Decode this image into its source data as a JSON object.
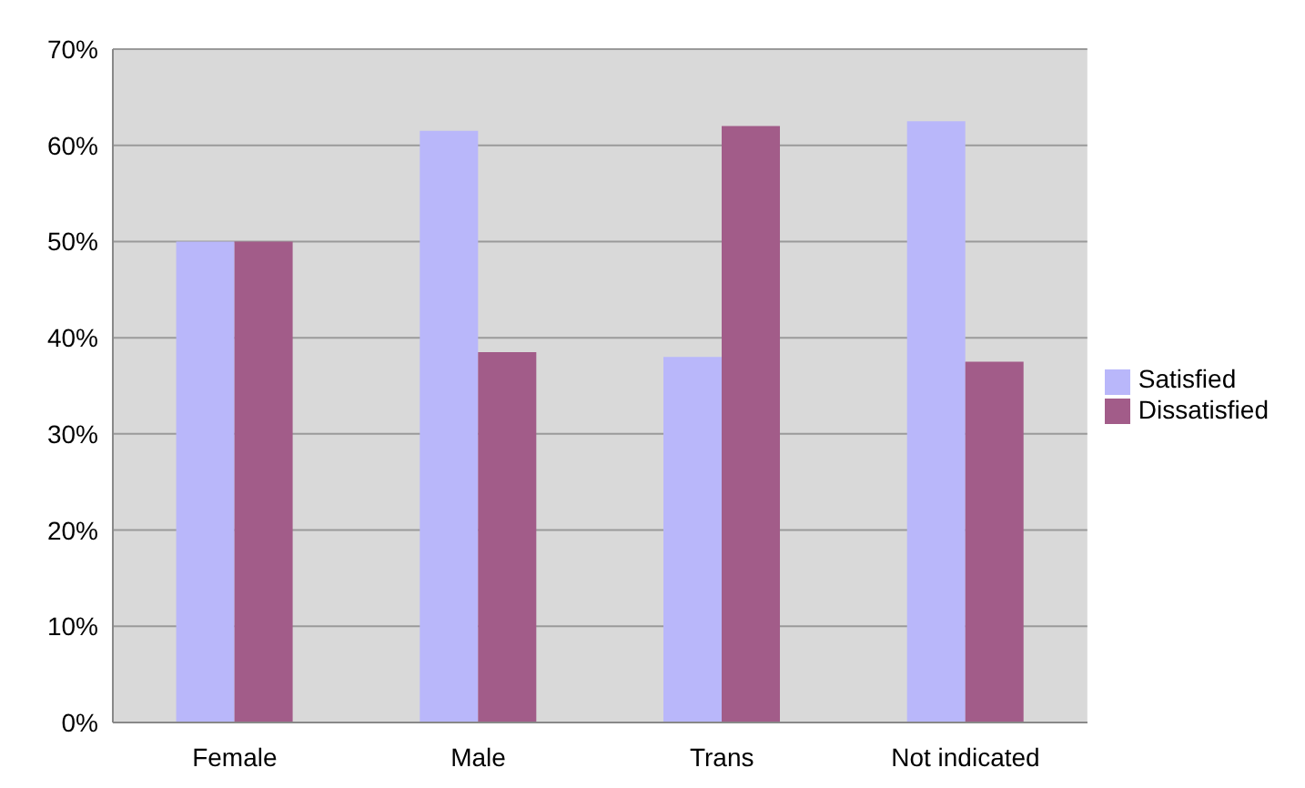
{
  "chart_data": {
    "type": "bar",
    "categories": [
      "Female",
      "Male",
      "Trans",
      "Not indicated"
    ],
    "series": [
      {
        "name": "Satisfied",
        "color": "#b9b7fa",
        "values": [
          50,
          61.5,
          38,
          62.5
        ]
      },
      {
        "name": "Dissatisfied",
        "color": "#a25c89",
        "values": [
          50,
          38.5,
          62,
          37.5
        ]
      }
    ],
    "ylim": [
      0,
      70
    ],
    "yticks": [
      {
        "value": 0,
        "label": "0%"
      },
      {
        "value": 10,
        "label": "10%"
      },
      {
        "value": 20,
        "label": "20%"
      },
      {
        "value": 30,
        "label": "30%"
      },
      {
        "value": 40,
        "label": "40%"
      },
      {
        "value": 50,
        "label": "50%"
      },
      {
        "value": 60,
        "label": "60%"
      },
      {
        "value": 70,
        "label": "70%"
      }
    ],
    "grid": "y",
    "legend": "right"
  }
}
